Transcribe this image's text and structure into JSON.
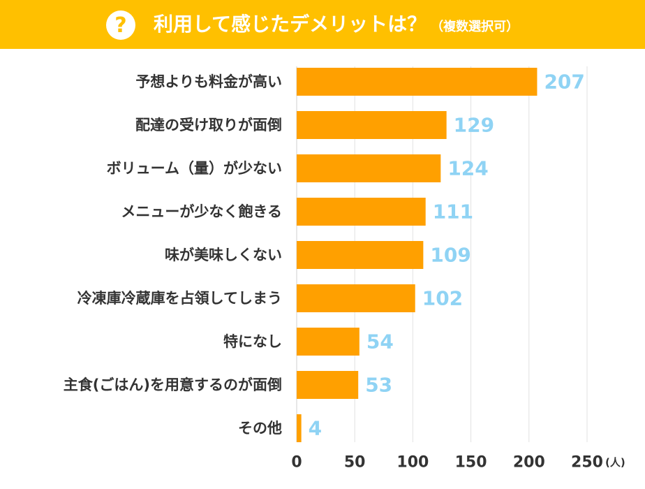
{
  "header": {
    "icon": "question-icon",
    "icon_glyph": "?",
    "title": "利用して感じたデメリットは？",
    "subtitle": "（複数選択可）",
    "bg_color": "#ffc000"
  },
  "chart_data": {
    "type": "bar",
    "orientation": "horizontal",
    "categories": [
      "予想よりも料金が高い",
      "配達の受け取りが面倒",
      "ボリューム（量）が少ない",
      "メニューが少なく飽きる",
      "味が美味しくない",
      "冷凍庫冷蔵庫を占領してしまう",
      "特になし",
      "主食(ごはん)を用意するのが面倒",
      "その他"
    ],
    "values": [
      207,
      129,
      124,
      111,
      109,
      102,
      54,
      53,
      4
    ],
    "xlim": [
      0,
      250
    ],
    "xticks": [
      0,
      50,
      100,
      150,
      200,
      250
    ],
    "unit": "(人)",
    "grid": true,
    "bar_color": "#ffa000",
    "value_label_color": "#8fd3f4"
  }
}
